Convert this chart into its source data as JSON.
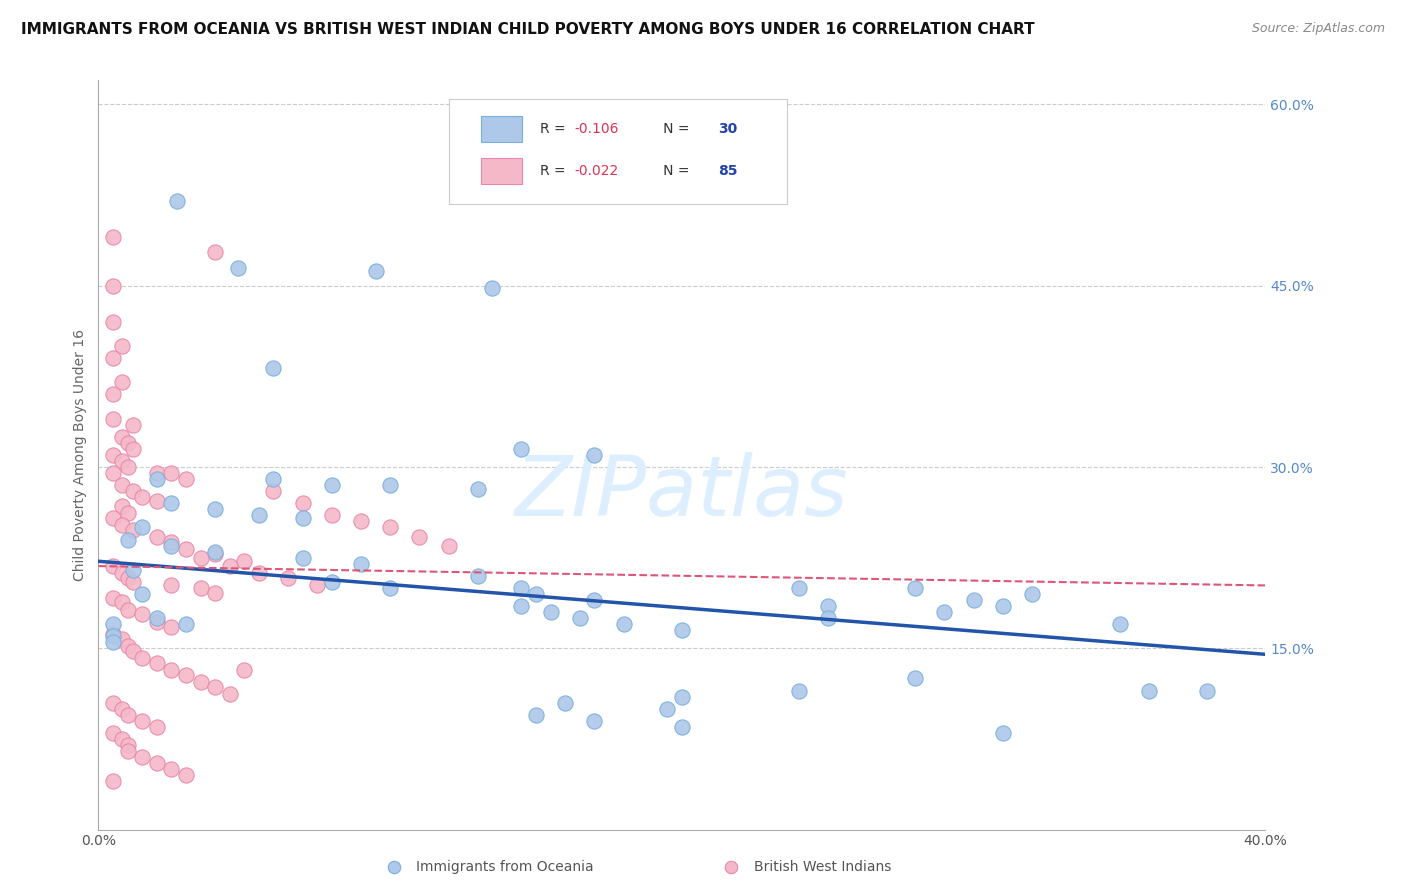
{
  "title": "IMMIGRANTS FROM OCEANIA VS BRITISH WEST INDIAN CHILD POVERTY AMONG BOYS UNDER 16 CORRELATION CHART",
  "source": "Source: ZipAtlas.com",
  "ylabel": "Child Poverty Among Boys Under 16",
  "watermark": "ZIPatlas",
  "xmin": 0.0,
  "xmax": 0.4,
  "ymin": 0.0,
  "ymax": 0.62,
  "right_yticks": [
    0.15,
    0.3,
    0.45,
    0.6
  ],
  "right_yticklabels": [
    "15.0%",
    "30.0%",
    "45.0%",
    "60.0%"
  ],
  "xticks": [
    0.0,
    0.1,
    0.2,
    0.3,
    0.4
  ],
  "xticklabels": [
    "0.0%",
    "",
    "",
    "",
    "40.0%"
  ],
  "blue_scatter": [
    [
      0.027,
      0.52
    ],
    [
      0.048,
      0.465
    ],
    [
      0.095,
      0.462
    ],
    [
      0.135,
      0.448
    ],
    [
      0.06,
      0.382
    ],
    [
      0.145,
      0.315
    ],
    [
      0.17,
      0.31
    ],
    [
      0.06,
      0.29
    ],
    [
      0.08,
      0.285
    ],
    [
      0.1,
      0.285
    ],
    [
      0.13,
      0.282
    ],
    [
      0.02,
      0.29
    ],
    [
      0.025,
      0.27
    ],
    [
      0.04,
      0.265
    ],
    [
      0.055,
      0.26
    ],
    [
      0.07,
      0.258
    ],
    [
      0.015,
      0.25
    ],
    [
      0.01,
      0.24
    ],
    [
      0.025,
      0.235
    ],
    [
      0.04,
      0.23
    ],
    [
      0.07,
      0.225
    ],
    [
      0.09,
      0.22
    ],
    [
      0.012,
      0.215
    ],
    [
      0.13,
      0.21
    ],
    [
      0.08,
      0.205
    ],
    [
      0.1,
      0.2
    ],
    [
      0.145,
      0.2
    ],
    [
      0.15,
      0.195
    ],
    [
      0.015,
      0.195
    ],
    [
      0.17,
      0.19
    ],
    [
      0.145,
      0.185
    ],
    [
      0.155,
      0.18
    ],
    [
      0.165,
      0.175
    ],
    [
      0.18,
      0.17
    ],
    [
      0.2,
      0.165
    ],
    [
      0.24,
      0.2
    ],
    [
      0.25,
      0.185
    ],
    [
      0.28,
      0.2
    ],
    [
      0.32,
      0.195
    ],
    [
      0.3,
      0.19
    ],
    [
      0.31,
      0.185
    ],
    [
      0.29,
      0.18
    ],
    [
      0.25,
      0.175
    ],
    [
      0.35,
      0.17
    ],
    [
      0.38,
      0.115
    ],
    [
      0.02,
      0.175
    ],
    [
      0.03,
      0.17
    ],
    [
      0.005,
      0.17
    ],
    [
      0.005,
      0.16
    ],
    [
      0.005,
      0.155
    ],
    [
      0.28,
      0.125
    ],
    [
      0.36,
      0.115
    ],
    [
      0.24,
      0.115
    ],
    [
      0.2,
      0.11
    ],
    [
      0.16,
      0.105
    ],
    [
      0.195,
      0.1
    ],
    [
      0.15,
      0.095
    ],
    [
      0.17,
      0.09
    ],
    [
      0.2,
      0.085
    ],
    [
      0.31,
      0.08
    ]
  ],
  "pink_scatter": [
    [
      0.005,
      0.49
    ],
    [
      0.04,
      0.478
    ],
    [
      0.005,
      0.45
    ],
    [
      0.005,
      0.42
    ],
    [
      0.008,
      0.4
    ],
    [
      0.005,
      0.39
    ],
    [
      0.008,
      0.37
    ],
    [
      0.005,
      0.36
    ],
    [
      0.005,
      0.34
    ],
    [
      0.012,
      0.335
    ],
    [
      0.008,
      0.325
    ],
    [
      0.01,
      0.32
    ],
    [
      0.012,
      0.315
    ],
    [
      0.005,
      0.31
    ],
    [
      0.008,
      0.305
    ],
    [
      0.01,
      0.3
    ],
    [
      0.005,
      0.295
    ],
    [
      0.02,
      0.295
    ],
    [
      0.025,
      0.295
    ],
    [
      0.03,
      0.29
    ],
    [
      0.008,
      0.285
    ],
    [
      0.012,
      0.28
    ],
    [
      0.015,
      0.275
    ],
    [
      0.02,
      0.272
    ],
    [
      0.008,
      0.268
    ],
    [
      0.01,
      0.262
    ],
    [
      0.005,
      0.258
    ],
    [
      0.008,
      0.252
    ],
    [
      0.012,
      0.248
    ],
    [
      0.02,
      0.242
    ],
    [
      0.025,
      0.238
    ],
    [
      0.03,
      0.232
    ],
    [
      0.04,
      0.228
    ],
    [
      0.05,
      0.222
    ],
    [
      0.005,
      0.218
    ],
    [
      0.008,
      0.212
    ],
    [
      0.01,
      0.208
    ],
    [
      0.012,
      0.205
    ],
    [
      0.025,
      0.202
    ],
    [
      0.035,
      0.2
    ],
    [
      0.04,
      0.196
    ],
    [
      0.005,
      0.192
    ],
    [
      0.008,
      0.188
    ],
    [
      0.01,
      0.182
    ],
    [
      0.015,
      0.178
    ],
    [
      0.02,
      0.172
    ],
    [
      0.025,
      0.168
    ],
    [
      0.005,
      0.162
    ],
    [
      0.008,
      0.158
    ],
    [
      0.01,
      0.152
    ],
    [
      0.012,
      0.148
    ],
    [
      0.015,
      0.142
    ],
    [
      0.02,
      0.138
    ],
    [
      0.025,
      0.132
    ],
    [
      0.03,
      0.128
    ],
    [
      0.035,
      0.122
    ],
    [
      0.04,
      0.118
    ],
    [
      0.045,
      0.112
    ],
    [
      0.05,
      0.132
    ],
    [
      0.005,
      0.105
    ],
    [
      0.008,
      0.1
    ],
    [
      0.01,
      0.095
    ],
    [
      0.015,
      0.09
    ],
    [
      0.02,
      0.085
    ],
    [
      0.005,
      0.08
    ],
    [
      0.008,
      0.075
    ],
    [
      0.01,
      0.07
    ],
    [
      0.06,
      0.28
    ],
    [
      0.07,
      0.27
    ],
    [
      0.08,
      0.26
    ],
    [
      0.09,
      0.255
    ],
    [
      0.1,
      0.25
    ],
    [
      0.11,
      0.242
    ],
    [
      0.12,
      0.235
    ],
    [
      0.035,
      0.225
    ],
    [
      0.045,
      0.218
    ],
    [
      0.055,
      0.212
    ],
    [
      0.065,
      0.208
    ],
    [
      0.075,
      0.202
    ],
    [
      0.01,
      0.065
    ],
    [
      0.015,
      0.06
    ],
    [
      0.02,
      0.055
    ],
    [
      0.025,
      0.05
    ],
    [
      0.03,
      0.045
    ],
    [
      0.005,
      0.04
    ]
  ],
  "blue_line": {
    "x0": 0.0,
    "x1": 0.4,
    "y0": 0.222,
    "y1": 0.145
  },
  "pink_line": {
    "x0": 0.0,
    "x1": 0.4,
    "y0": 0.218,
    "y1": 0.202
  },
  "title_fontsize": 11,
  "source_fontsize": 9,
  "axis_label_fontsize": 10,
  "tick_fontsize": 10,
  "legend_fontsize": 10,
  "watermark_fontsize": 60,
  "watermark_color": "#ddeeff",
  "scatter_size": 120,
  "blue_scatter_color": "#adc8e8",
  "blue_scatter_edge": "#7aafdd",
  "pink_scatter_color": "#f5b8c8",
  "pink_scatter_edge": "#e888a8",
  "blue_line_color": "#2255aa",
  "pink_line_color": "#dd5577",
  "grid_color": "#cccccc",
  "background_color": "#ffffff",
  "right_axis_color": "#5588cc",
  "legend_R_color": "#dd3355",
  "legend_N_color": "#2244aa",
  "legend_label_color": "#333333"
}
